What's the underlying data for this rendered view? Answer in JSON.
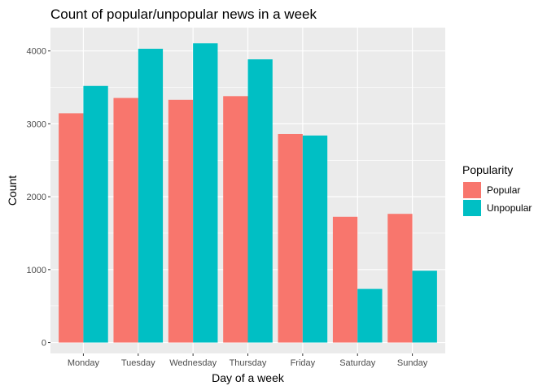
{
  "chart_data": {
    "type": "bar",
    "title": "Count of popular/unpopular news in a week",
    "xlabel": "Day of a week",
    "ylabel": "Count",
    "categories": [
      "Monday",
      "Tuesday",
      "Wednesday",
      "Thursday",
      "Friday",
      "Saturday",
      "Sunday"
    ],
    "series": [
      {
        "name": "Popular",
        "color": "#F8766D",
        "values": [
          3145,
          3355,
          3330,
          3380,
          2860,
          1725,
          1765
        ]
      },
      {
        "name": "Unpopular",
        "color": "#00BFC4",
        "values": [
          3520,
          4030,
          4105,
          3885,
          2840,
          735,
          985
        ]
      }
    ],
    "ylim": [
      -150,
      4320
    ],
    "yticks": [
      0,
      1000,
      2000,
      3000,
      4000
    ],
    "ytick_labels": [
      "0",
      "1000",
      "2000",
      "3000",
      "4000"
    ],
    "grid": true,
    "legend": {
      "title": "Popularity",
      "placement": "right"
    },
    "panel_background": "#EBEBEB",
    "grid_color": "#FFFFFF"
  }
}
